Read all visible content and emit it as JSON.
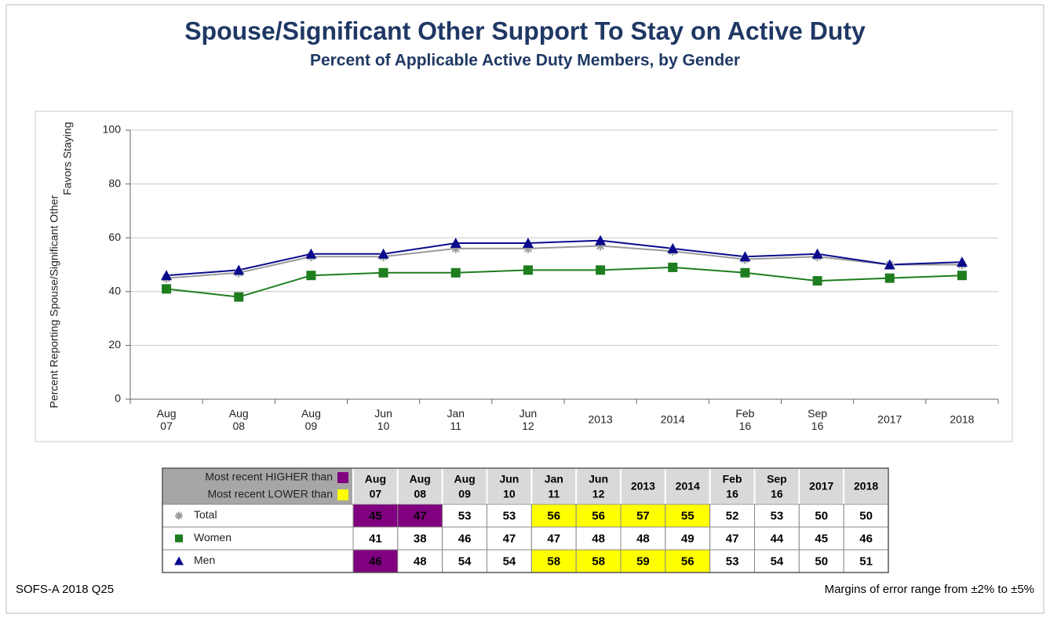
{
  "chart_data": {
    "type": "line",
    "title": "Spouse/Significant Other Support To Stay on Active Duty",
    "subtitle": "Percent of Applicable Active Duty Members, by Gender",
    "y_label": "Percent Reporting Spouse/Significant Other\nFavors Staying",
    "categories": [
      "Aug\n07",
      "Aug\n08",
      "Aug\n09",
      "Jun\n10",
      "Jan\n11",
      "Jun\n12",
      "2013",
      "2014",
      "Feb\n16",
      "Sep\n16",
      "2017",
      "2018"
    ],
    "ylim": [
      0,
      100
    ],
    "yticks": [
      0,
      20,
      40,
      60,
      80,
      100
    ],
    "grid": true,
    "series": [
      {
        "name": "Total",
        "color": "#9a9a9a",
        "marker": "asterisk",
        "values": [
          45,
          47,
          53,
          53,
          56,
          56,
          57,
          55,
          52,
          53,
          50,
          50
        ],
        "highlights": [
          0,
          0,
          null,
          null,
          1,
          1,
          1,
          1,
          null,
          null,
          null,
          null
        ]
      },
      {
        "name": "Women",
        "color": "#1e7d1e",
        "marker": "square",
        "values": [
          41,
          38,
          46,
          47,
          47,
          48,
          48,
          49,
          47,
          44,
          45,
          46
        ],
        "highlights": [
          null,
          null,
          null,
          null,
          null,
          null,
          null,
          null,
          null,
          null,
          null,
          null
        ]
      },
      {
        "name": "Men",
        "color": "#0a0a8c",
        "marker": "triangle",
        "values": [
          46,
          48,
          54,
          54,
          58,
          58,
          59,
          56,
          53,
          54,
          50,
          51
        ],
        "highlights": [
          0,
          null,
          null,
          null,
          1,
          1,
          1,
          1,
          null,
          null,
          null,
          null
        ]
      }
    ],
    "table_legend": [
      {
        "label": "Most recent HIGHER than",
        "color": "#800080"
      },
      {
        "label": "Most recent LOWER than",
        "color": "#ffff00"
      }
    ]
  },
  "footer": {
    "source": "SOFS-A 2018 Q25",
    "note": "Margins of error range from ±2% to ±5%"
  }
}
